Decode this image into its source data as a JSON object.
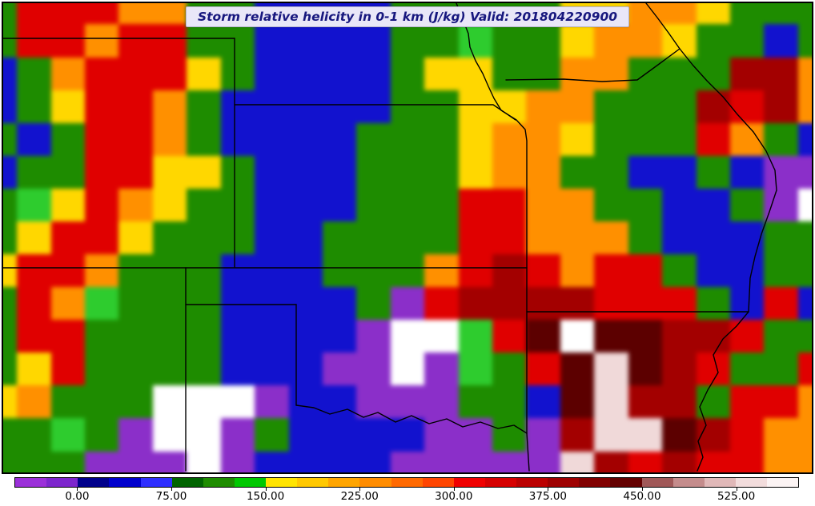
{
  "header": {
    "title": "Storm relative helicity in 0-1 km (J/kg) Valid: 201804220900"
  },
  "chart_data": {
    "type": "heatmap",
    "title": "Storm relative helicity in 0-1 km (J/kg) Valid: 201804220900",
    "field": "Storm relative helicity in 0-1 km",
    "units": "J/kg",
    "valid_time": "201804220900",
    "legend_position": "bottom",
    "colorbar": {
      "min": -50,
      "max": 575,
      "interval": 25,
      "tick_values": [
        0,
        75,
        150,
        225,
        300,
        375,
        450,
        525
      ],
      "tick_labels": [
        "0.00",
        "75.00",
        "150.00",
        "225.00",
        "300.00",
        "375.00",
        "450.00",
        "525.00"
      ],
      "colors": [
        "#9B30D9",
        "#7D26CD",
        "#00008B",
        "#0000CD",
        "#2E2EFF",
        "#006400",
        "#1E8C00",
        "#00C800",
        "#FFE400",
        "#FFC800",
        "#FFA500",
        "#FF8C00",
        "#FF6900",
        "#FF4500",
        "#F00000",
        "#D60000",
        "#BB0000",
        "#9E0000",
        "#810000",
        "#640000",
        "#A05858",
        "#C48C8C",
        "#E0B8B8",
        "#F2DCDC",
        "#FCF4F4"
      ]
    },
    "grid": {
      "description": "Coarse 25x15 approximation of the filled-contour helicity field over the central US (CO, NM, TX panhandle, OK, KS, NE, IA, MO, AR visible)",
      "cols": 25,
      "rows": 15,
      "palette": {
        "w": "#FFFFFF",
        "p": "#8B2FC9",
        "b": "#1212CE",
        "g": "#1E8C00",
        "e": "#2ECC2E",
        "y": "#FFD700",
        "o": "#FF9000",
        "r": "#E00000",
        "m": "#A30000",
        "k": "#5C0000",
        "s": "#F0D9D9"
      },
      "palette_meaning": {
        "w": "off-scale low (white)",
        "p": "-50 to 0",
        "b": "0 to 75",
        "g": "75 to 150",
        "e": "125 to 150",
        "y": "150 to 225",
        "o": "225 to 300",
        "r": "300 to 375",
        "m": "375 to 450",
        "k": "425 to 475",
        "s": "above 475 (pale pink)"
      },
      "cells": [
        "grrrooggbbbbgggggyyooyggg",
        "grrorrggbbbbggeggyooyggbg",
        "bgorrrygbbbbgyyggoogggmmo",
        "bgyrrogbbbbbggyyoogggmrmo",
        "gbgrrogbbbbgggyooygggrogb",
        "bggrryygbbbgggyooggbbgbpp",
        "geyroyggbbbgggrrooggbbgpw",
        "gyrrygggbbggggrrooogbbbgg",
        "yrrogggbbbgggormrorrgbbgg",
        "groegggbbbbgprmmmmrrrgbrb",
        "grrggggbbbbpwwerkwkkmmrgg",
        "gyrggggbbbppwpegrkskmrggr",
        "yogggwwwpbbpppggbksmmgrro",
        "ggegpwwpgbbbbppgpmsskmroo",
        "gggpppwpbbbbpppppsmrmrroo"
      ]
    }
  }
}
